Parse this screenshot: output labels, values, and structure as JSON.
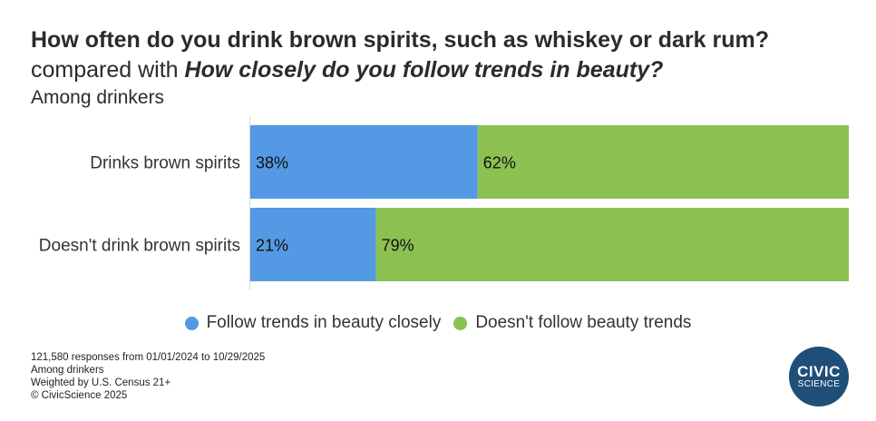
{
  "header": {
    "title": "How often do you drink brown spirits, such as whiskey or dark rum?",
    "subtitle_prefix": "compared with ",
    "subtitle_question": "How closely do you follow trends in beauty?",
    "subtitle2": "Among drinkers"
  },
  "chart_data": {
    "type": "bar",
    "orientation": "horizontal",
    "stacked": true,
    "categories": [
      "Drinks brown spirits",
      "Doesn't drink brown spirits"
    ],
    "series": [
      {
        "name": "Follow trends in beauty closely",
        "values": [
          38,
          21
        ],
        "labels": [
          "38%",
          "21%"
        ],
        "color": "#5499e3"
      },
      {
        "name": "Doesn't follow beauty trends",
        "values": [
          62,
          79
        ],
        "labels": [
          "62%",
          "79%"
        ],
        "color": "#8cc152"
      }
    ],
    "xlim": [
      0,
      100
    ],
    "grid": false,
    "legend": "bottom-center"
  },
  "footnotes": [
    "121,580 responses from 01/01/2024 to 10/29/2025",
    "Among drinkers",
    "Weighted by U.S. Census 21+",
    "© CivicScience 2025"
  ],
  "logo": {
    "line1": "CIVIC",
    "line2": "SCIENCE",
    "color": "#1f4e79"
  }
}
